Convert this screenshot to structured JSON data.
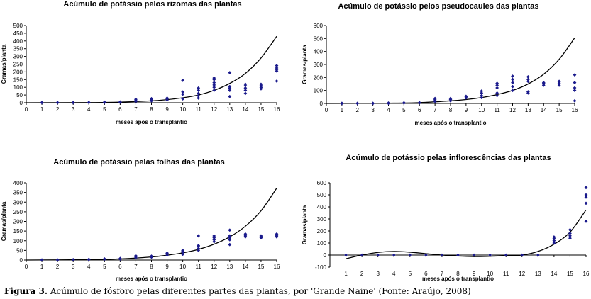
{
  "caption": {
    "label": "Figura 3.",
    "text": "Acúmulo de fósforo pelas diferentes partes das plantas, por 'Grande Naine' (Fonte: Araújo, 2008)"
  },
  "chart_data": [
    {
      "id": "rizomas",
      "type": "scatter",
      "title": "Acúmulo de potássio pelos rizomas das plantas",
      "xlabel": "meses após o transplantio",
      "ylabel": "Gramas/planta",
      "xlim": [
        0,
        16
      ],
      "ylim": [
        0,
        500
      ],
      "yticks": [
        0,
        50,
        100,
        150,
        200,
        250,
        300,
        350,
        400,
        450,
        500
      ],
      "xticks": [
        0,
        1,
        2,
        3,
        4,
        5,
        6,
        7,
        8,
        9,
        10,
        11,
        12,
        13,
        14,
        15,
        16
      ],
      "points": [
        [
          1,
          0
        ],
        [
          1,
          1
        ],
        [
          2,
          0
        ],
        [
          2,
          1
        ],
        [
          3,
          0
        ],
        [
          3,
          1
        ],
        [
          4,
          1
        ],
        [
          4,
          2
        ],
        [
          5,
          2
        ],
        [
          5,
          4
        ],
        [
          6,
          3
        ],
        [
          6,
          5
        ],
        [
          7,
          8
        ],
        [
          7,
          14
        ],
        [
          7,
          22
        ],
        [
          8,
          12
        ],
        [
          8,
          20
        ],
        [
          8,
          26
        ],
        [
          9,
          18
        ],
        [
          9,
          25
        ],
        [
          9,
          30
        ],
        [
          10,
          25
        ],
        [
          10,
          55
        ],
        [
          10,
          70
        ],
        [
          10,
          145
        ],
        [
          11,
          30
        ],
        [
          11,
          45
        ],
        [
          11,
          60
        ],
        [
          11,
          80
        ],
        [
          11,
          95
        ],
        [
          12,
          80
        ],
        [
          12,
          100
        ],
        [
          12,
          115
        ],
        [
          12,
          130
        ],
        [
          12,
          150
        ],
        [
          12,
          160
        ],
        [
          13,
          40
        ],
        [
          13,
          80
        ],
        [
          13,
          95
        ],
        [
          13,
          105
        ],
        [
          13,
          195
        ],
        [
          14,
          60
        ],
        [
          14,
          80
        ],
        [
          14,
          95
        ],
        [
          14,
          110
        ],
        [
          14,
          120
        ],
        [
          15,
          90
        ],
        [
          15,
          100
        ],
        [
          15,
          110
        ],
        [
          15,
          120
        ],
        [
          16,
          140
        ],
        [
          16,
          205
        ],
        [
          16,
          215
        ],
        [
          16,
          225
        ],
        [
          16,
          240
        ]
      ],
      "trend": [
        [
          0,
          0
        ],
        [
          4,
          1
        ],
        [
          6,
          4
        ],
        [
          8,
          12
        ],
        [
          9,
          20
        ],
        [
          10,
          32
        ],
        [
          11,
          50
        ],
        [
          12,
          80
        ],
        [
          13,
          125
        ],
        [
          14,
          190
        ],
        [
          15,
          290
        ],
        [
          16,
          430
        ]
      ]
    },
    {
      "id": "pseudocaules",
      "type": "scatter",
      "title": "Acúmulo de potássio pelos pseudocaules das plantas",
      "xlabel": "meses após o transplantio",
      "ylabel": "Gramas/planta",
      "xlim": [
        0,
        16
      ],
      "ylim": [
        0,
        600
      ],
      "yticks": [
        0,
        100,
        200,
        300,
        400,
        500,
        600
      ],
      "xticks": [
        0,
        1,
        2,
        3,
        4,
        5,
        6,
        7,
        8,
        9,
        10,
        11,
        12,
        13,
        14,
        15,
        16
      ],
      "points": [
        [
          1,
          0
        ],
        [
          1,
          1
        ],
        [
          2,
          0
        ],
        [
          2,
          1
        ],
        [
          3,
          0
        ],
        [
          3,
          1
        ],
        [
          4,
          1
        ],
        [
          4,
          3
        ],
        [
          5,
          3
        ],
        [
          5,
          5
        ],
        [
          6,
          4
        ],
        [
          6,
          6
        ],
        [
          7,
          15
        ],
        [
          7,
          28
        ],
        [
          7,
          38
        ],
        [
          8,
          20
        ],
        [
          8,
          30
        ],
        [
          8,
          38
        ],
        [
          9,
          42
        ],
        [
          9,
          50
        ],
        [
          9,
          55
        ],
        [
          10,
          45
        ],
        [
          10,
          60
        ],
        [
          10,
          80
        ],
        [
          10,
          95
        ],
        [
          11,
          60
        ],
        [
          11,
          80
        ],
        [
          11,
          120
        ],
        [
          11,
          140
        ],
        [
          11,
          155
        ],
        [
          12,
          100
        ],
        [
          12,
          130
        ],
        [
          12,
          160
        ],
        [
          12,
          185
        ],
        [
          12,
          210
        ],
        [
          13,
          80
        ],
        [
          13,
          90
        ],
        [
          13,
          170
        ],
        [
          13,
          185
        ],
        [
          13,
          205
        ],
        [
          14,
          140
        ],
        [
          14,
          150
        ],
        [
          14,
          155
        ],
        [
          14,
          160
        ],
        [
          15,
          140
        ],
        [
          15,
          155
        ],
        [
          15,
          165
        ],
        [
          15,
          170
        ],
        [
          16,
          20
        ],
        [
          16,
          100
        ],
        [
          16,
          120
        ],
        [
          16,
          160
        ],
        [
          16,
          220
        ]
      ],
      "trend": [
        [
          0,
          0
        ],
        [
          4,
          2
        ],
        [
          6,
          6
        ],
        [
          8,
          20
        ],
        [
          9,
          30
        ],
        [
          10,
          45
        ],
        [
          11,
          68
        ],
        [
          12,
          100
        ],
        [
          13,
          150
        ],
        [
          14,
          225
        ],
        [
          15,
          340
        ],
        [
          16,
          505
        ]
      ]
    },
    {
      "id": "folhas",
      "type": "scatter",
      "title": "Acúmulo de potássio pelas folhas das plantas",
      "xlabel": "meses após o transplantio",
      "ylabel": "Gramas/planta",
      "xlim": [
        0,
        16
      ],
      "ylim": [
        0,
        400
      ],
      "yticks": [
        0,
        50,
        100,
        150,
        200,
        250,
        300,
        350,
        400
      ],
      "xticks": [
        0,
        1,
        2,
        3,
        4,
        5,
        6,
        7,
        8,
        9,
        10,
        11,
        12,
        13,
        14,
        15,
        16
      ],
      "points": [
        [
          1,
          0
        ],
        [
          1,
          1
        ],
        [
          2,
          0
        ],
        [
          2,
          1
        ],
        [
          3,
          1
        ],
        [
          3,
          2
        ],
        [
          4,
          2
        ],
        [
          4,
          4
        ],
        [
          5,
          4
        ],
        [
          5,
          6
        ],
        [
          6,
          5
        ],
        [
          6,
          8
        ],
        [
          7,
          12
        ],
        [
          7,
          18
        ],
        [
          7,
          22
        ],
        [
          8,
          15
        ],
        [
          8,
          20
        ],
        [
          9,
          25
        ],
        [
          9,
          32
        ],
        [
          9,
          36
        ],
        [
          10,
          30
        ],
        [
          10,
          40
        ],
        [
          10,
          45
        ],
        [
          10,
          50
        ],
        [
          11,
          50
        ],
        [
          11,
          60
        ],
        [
          11,
          70
        ],
        [
          11,
          75
        ],
        [
          11,
          125
        ],
        [
          12,
          95
        ],
        [
          12,
          105
        ],
        [
          12,
          115
        ],
        [
          12,
          125
        ],
        [
          13,
          80
        ],
        [
          13,
          105
        ],
        [
          13,
          115
        ],
        [
          13,
          125
        ],
        [
          13,
          155
        ],
        [
          14,
          120
        ],
        [
          14,
          125
        ],
        [
          14,
          130
        ],
        [
          14,
          135
        ],
        [
          15,
          115
        ],
        [
          15,
          120
        ],
        [
          15,
          125
        ],
        [
          16,
          120
        ],
        [
          16,
          125
        ],
        [
          16,
          130
        ],
        [
          16,
          135
        ]
      ],
      "trend": [
        [
          0,
          0
        ],
        [
          4,
          2
        ],
        [
          6,
          6
        ],
        [
          8,
          16
        ],
        [
          9,
          25
        ],
        [
          10,
          37
        ],
        [
          11,
          55
        ],
        [
          12,
          82
        ],
        [
          13,
          120
        ],
        [
          14,
          175
        ],
        [
          15,
          255
        ],
        [
          16,
          372
        ]
      ]
    },
    {
      "id": "inflorescencias",
      "type": "scatter",
      "title": "Acúmulo de potássio pelas inflorescências das plantas",
      "xlabel": "meses após o transplantio",
      "ylabel": "Gramas/planta",
      "xlim": [
        0,
        16
      ],
      "ylim": [
        -100,
        600
      ],
      "yticks": [
        -100,
        0,
        100,
        200,
        300,
        400,
        500,
        600
      ],
      "xticks": [
        1,
        2,
        3,
        4,
        5,
        6,
        7,
        8,
        9,
        10,
        11,
        12,
        13,
        14,
        15,
        16
      ],
      "points": [
        [
          1,
          0
        ],
        [
          2,
          0
        ],
        [
          3,
          0
        ],
        [
          4,
          0
        ],
        [
          5,
          0
        ],
        [
          6,
          0
        ],
        [
          7,
          0
        ],
        [
          8,
          0
        ],
        [
          9,
          0
        ],
        [
          10,
          0
        ],
        [
          11,
          0
        ],
        [
          12,
          0
        ],
        [
          13,
          0
        ],
        [
          14,
          100
        ],
        [
          14,
          120
        ],
        [
          14,
          140
        ],
        [
          14,
          150
        ],
        [
          15,
          140
        ],
        [
          15,
          160
        ],
        [
          15,
          180
        ],
        [
          15,
          210
        ],
        [
          16,
          280
        ],
        [
          16,
          430
        ],
        [
          16,
          480
        ],
        [
          16,
          500
        ],
        [
          16,
          560
        ]
      ],
      "trend": [
        [
          1,
          -30
        ],
        [
          2,
          0
        ],
        [
          3,
          22
        ],
        [
          4,
          30
        ],
        [
          5,
          24
        ],
        [
          6,
          12
        ],
        [
          7,
          0
        ],
        [
          8,
          -8
        ],
        [
          9,
          -12
        ],
        [
          10,
          -10
        ],
        [
          11,
          -6
        ],
        [
          12,
          0
        ],
        [
          13,
          30
        ],
        [
          14,
          90
        ],
        [
          15,
          190
        ],
        [
          16,
          375
        ]
      ]
    }
  ]
}
